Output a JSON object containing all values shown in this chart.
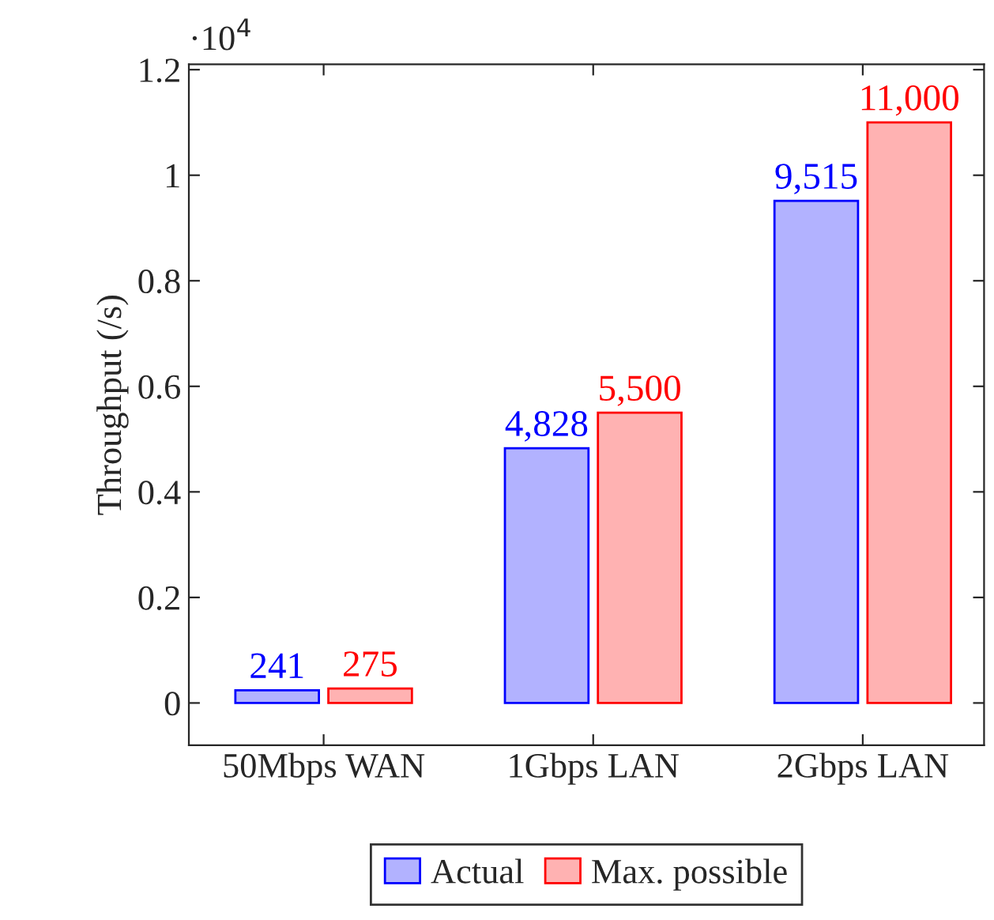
{
  "chart_data": {
    "type": "bar",
    "ylabel": "Throughput (/s)",
    "categories": [
      "50Mbps WAN",
      "1Gbps LAN",
      "2Gbps LAN"
    ],
    "series": [
      {
        "name": "Actual",
        "color": "#0000ff",
        "values": [
          0.0241,
          0.4828,
          0.9515
        ]
      },
      {
        "name": "Max. possible",
        "color": "#ff0000",
        "values": [
          0.0275,
          0.55,
          1.1
        ]
      }
    ],
    "ylim": [
      -0.08,
      1.21
    ],
    "yticks": [
      0,
      0.2,
      0.4,
      0.6,
      0.8,
      1,
      1.2
    ],
    "annotations": [
      "·10$^{4}$",
      {
        "text": "241",
        "x": "50Mbps WAN",
        "y": 0.0241
      },
      {
        "text": "275",
        "x": "50Mbps WAN",
        "y": 0.0275
      },
      {
        "text": "4,828",
        "x": "1Gbps LAN",
        "y": 0.4828
      },
      {
        "text": "5,500",
        "x": "1Gbps LAN",
        "y": 0.55
      },
      {
        "text": "9,515",
        "x": "2Gbps LAN",
        "y": 0.9515
      },
      {
        "text": "11,000",
        "x": "2Gbps LAN",
        "y": 1.1
      }
    ],
    "grid": false,
    "legend": "bottom"
  }
}
